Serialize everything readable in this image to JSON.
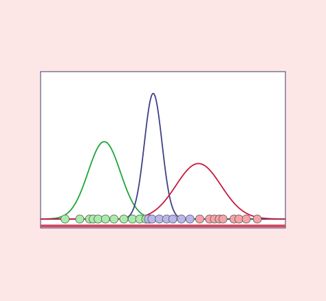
{
  "chart_data": {
    "type": "line",
    "title": "",
    "xlabel": "",
    "ylabel": "",
    "xlim": [
      0,
      100
    ],
    "ylim": [
      0,
      1
    ],
    "grid": false,
    "legend": "none",
    "colors": {
      "page_background": "#fde6e6",
      "plot_background": "#ffffff",
      "frame": "#3b3b6e",
      "baseline": "#d44a63"
    },
    "series": [
      {
        "color": "#1aa638",
        "point_fill": "#a8eca8",
        "curve": {
          "mean": 26,
          "sd": 6.6,
          "peak": 0.53
        },
        "points": [
          10,
          16,
          20,
          21.5,
          23.5,
          26.5,
          30,
          34,
          37.5,
          40.5,
          43,
          44.5
        ]
      },
      {
        "color": "#3e3e86",
        "point_fill": "#b9b6ec",
        "curve": {
          "mean": 46,
          "sd": 3.6,
          "peak": 0.86
        },
        "points": [
          44,
          45.5,
          48.5,
          51.5,
          54,
          57.5,
          61
        ]
      },
      {
        "color": "#c8193d",
        "point_fill": "#f5a3a6",
        "curve": {
          "mean": 64.5,
          "sd": 9.2,
          "peak": 0.38
        },
        "points": [
          65,
          69,
          71,
          73,
          74.5,
          79,
          81,
          84,
          88.5
        ]
      }
    ]
  }
}
